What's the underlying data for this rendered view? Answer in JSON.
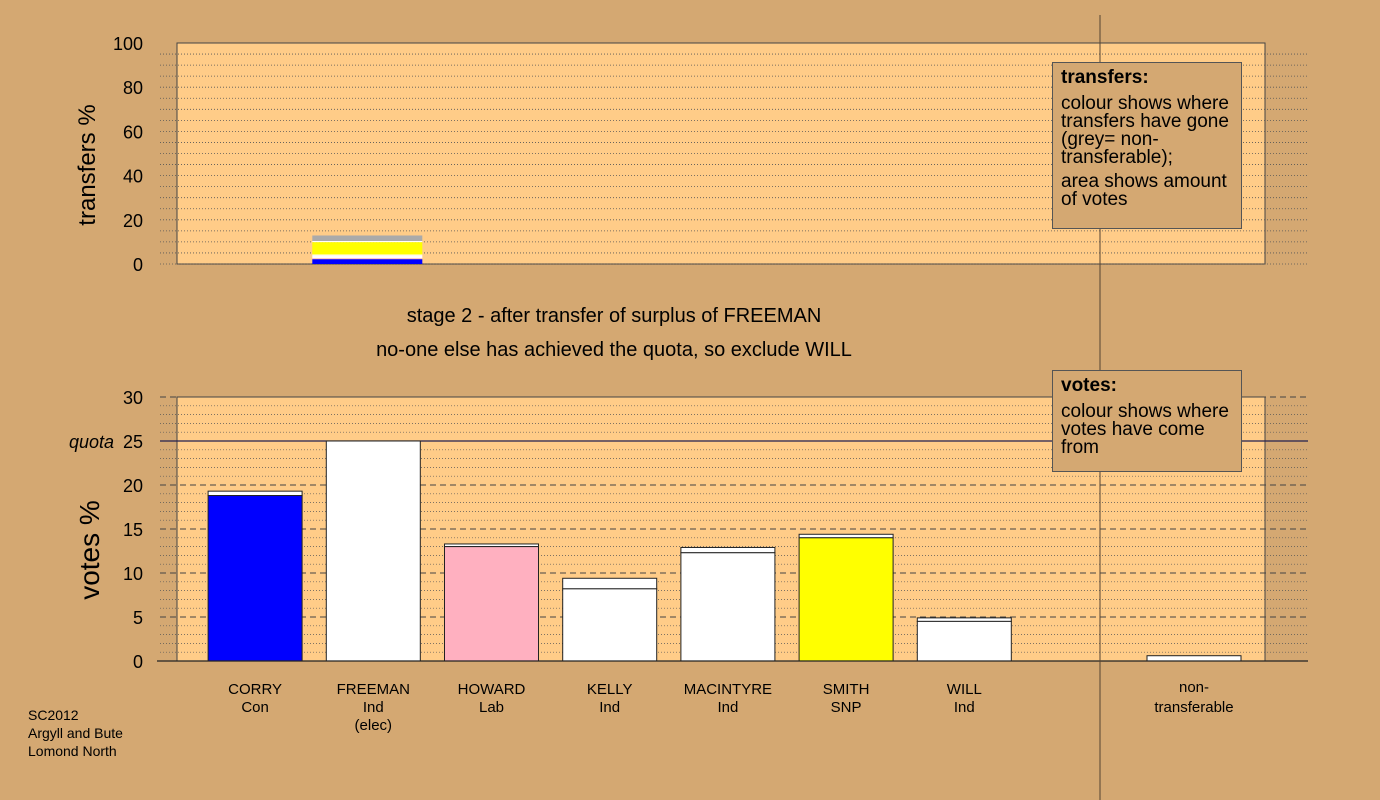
{
  "stage_text": {
    "line1": "stage 2 - after transfer of surplus of FREEMAN",
    "line2": "no-one else has achieved the quota, so exclude WILL"
  },
  "legend_transfers": {
    "title": "transfers:",
    "line1": "colour shows where transfers have gone (grey= non-transferable);",
    "line2": "area shows amount of votes"
  },
  "legend_votes": {
    "title": "votes:",
    "line1": "colour shows where votes have come from"
  },
  "footer": {
    "line1": "SC2012",
    "line2": "Argyll and Bute",
    "line3": "Lomond North"
  },
  "colors": {
    "background": "#d4a872",
    "plot_bg": "#ffcc88",
    "con": "#0000ff",
    "lab": "#ffb0c0",
    "snp": "#ffff00",
    "ind": "#ffffff",
    "nontransferable": "#aaaaaa"
  },
  "chart_data": [
    {
      "type": "bar",
      "ylabel": "transfers %",
      "ylim": [
        0,
        100
      ],
      "yticks": [
        0,
        20,
        40,
        60,
        80,
        100
      ],
      "transfer_from": "FREEMAN",
      "segments": [
        {
          "to": "CORRY",
          "value": 2.2,
          "color": "#0000ff"
        },
        {
          "to": "HOWARD",
          "value": 0.4,
          "color": "#ffb0c0"
        },
        {
          "to": "KELLY",
          "value": 1.1,
          "color": "#ffffff"
        },
        {
          "to": "MACINTYRE",
          "value": 0.6,
          "color": "#ffffff"
        },
        {
          "to": "SMITH",
          "value": 5.6,
          "color": "#ffff00"
        },
        {
          "to": "WILL",
          "value": 0.5,
          "color": "#ffffff"
        },
        {
          "to": "non-transferable",
          "value": 2.5,
          "color": "#aaaaaa"
        }
      ]
    },
    {
      "type": "bar",
      "ylabel": "votes %",
      "ylim": [
        0,
        30
      ],
      "yticks": [
        0,
        5,
        10,
        15,
        20,
        25,
        30
      ],
      "quota": 25,
      "quota_label": "quota",
      "categories": [
        "CORRY",
        "FREEMAN",
        "HOWARD",
        "KELLY",
        "MACINTYRE",
        "SMITH",
        "WILL",
        "non-transferable"
      ],
      "candidates": [
        {
          "name": "CORRY",
          "party": "Con",
          "note": "",
          "color": "#0000ff",
          "first": 18.8,
          "transfer": 0.5
        },
        {
          "name": "FREEMAN",
          "party": "Ind",
          "note": "(elec)",
          "color": "#ffffff",
          "first": 25.0,
          "transfer": 0
        },
        {
          "name": "HOWARD",
          "party": "Lab",
          "note": "",
          "color": "#ffb0c0",
          "first": 13.0,
          "transfer": 0.3
        },
        {
          "name": "KELLY",
          "party": "Ind",
          "note": "",
          "color": "#ffffff",
          "first": 8.2,
          "transfer": 1.2
        },
        {
          "name": "MACINTYRE",
          "party": "Ind",
          "note": "",
          "color": "#ffffff",
          "first": 12.3,
          "transfer": 0.6
        },
        {
          "name": "SMITH",
          "party": "SNP",
          "note": "",
          "color": "#ffff00",
          "first": 14.0,
          "transfer": 0.4
        },
        {
          "name": "WILL",
          "party": "Ind",
          "note": "",
          "color": "#ffffff",
          "first": 4.5,
          "transfer": 0.4
        }
      ],
      "nontransferable": {
        "label1": "non-",
        "label2": "transferable",
        "value": 0.6
      }
    }
  ]
}
